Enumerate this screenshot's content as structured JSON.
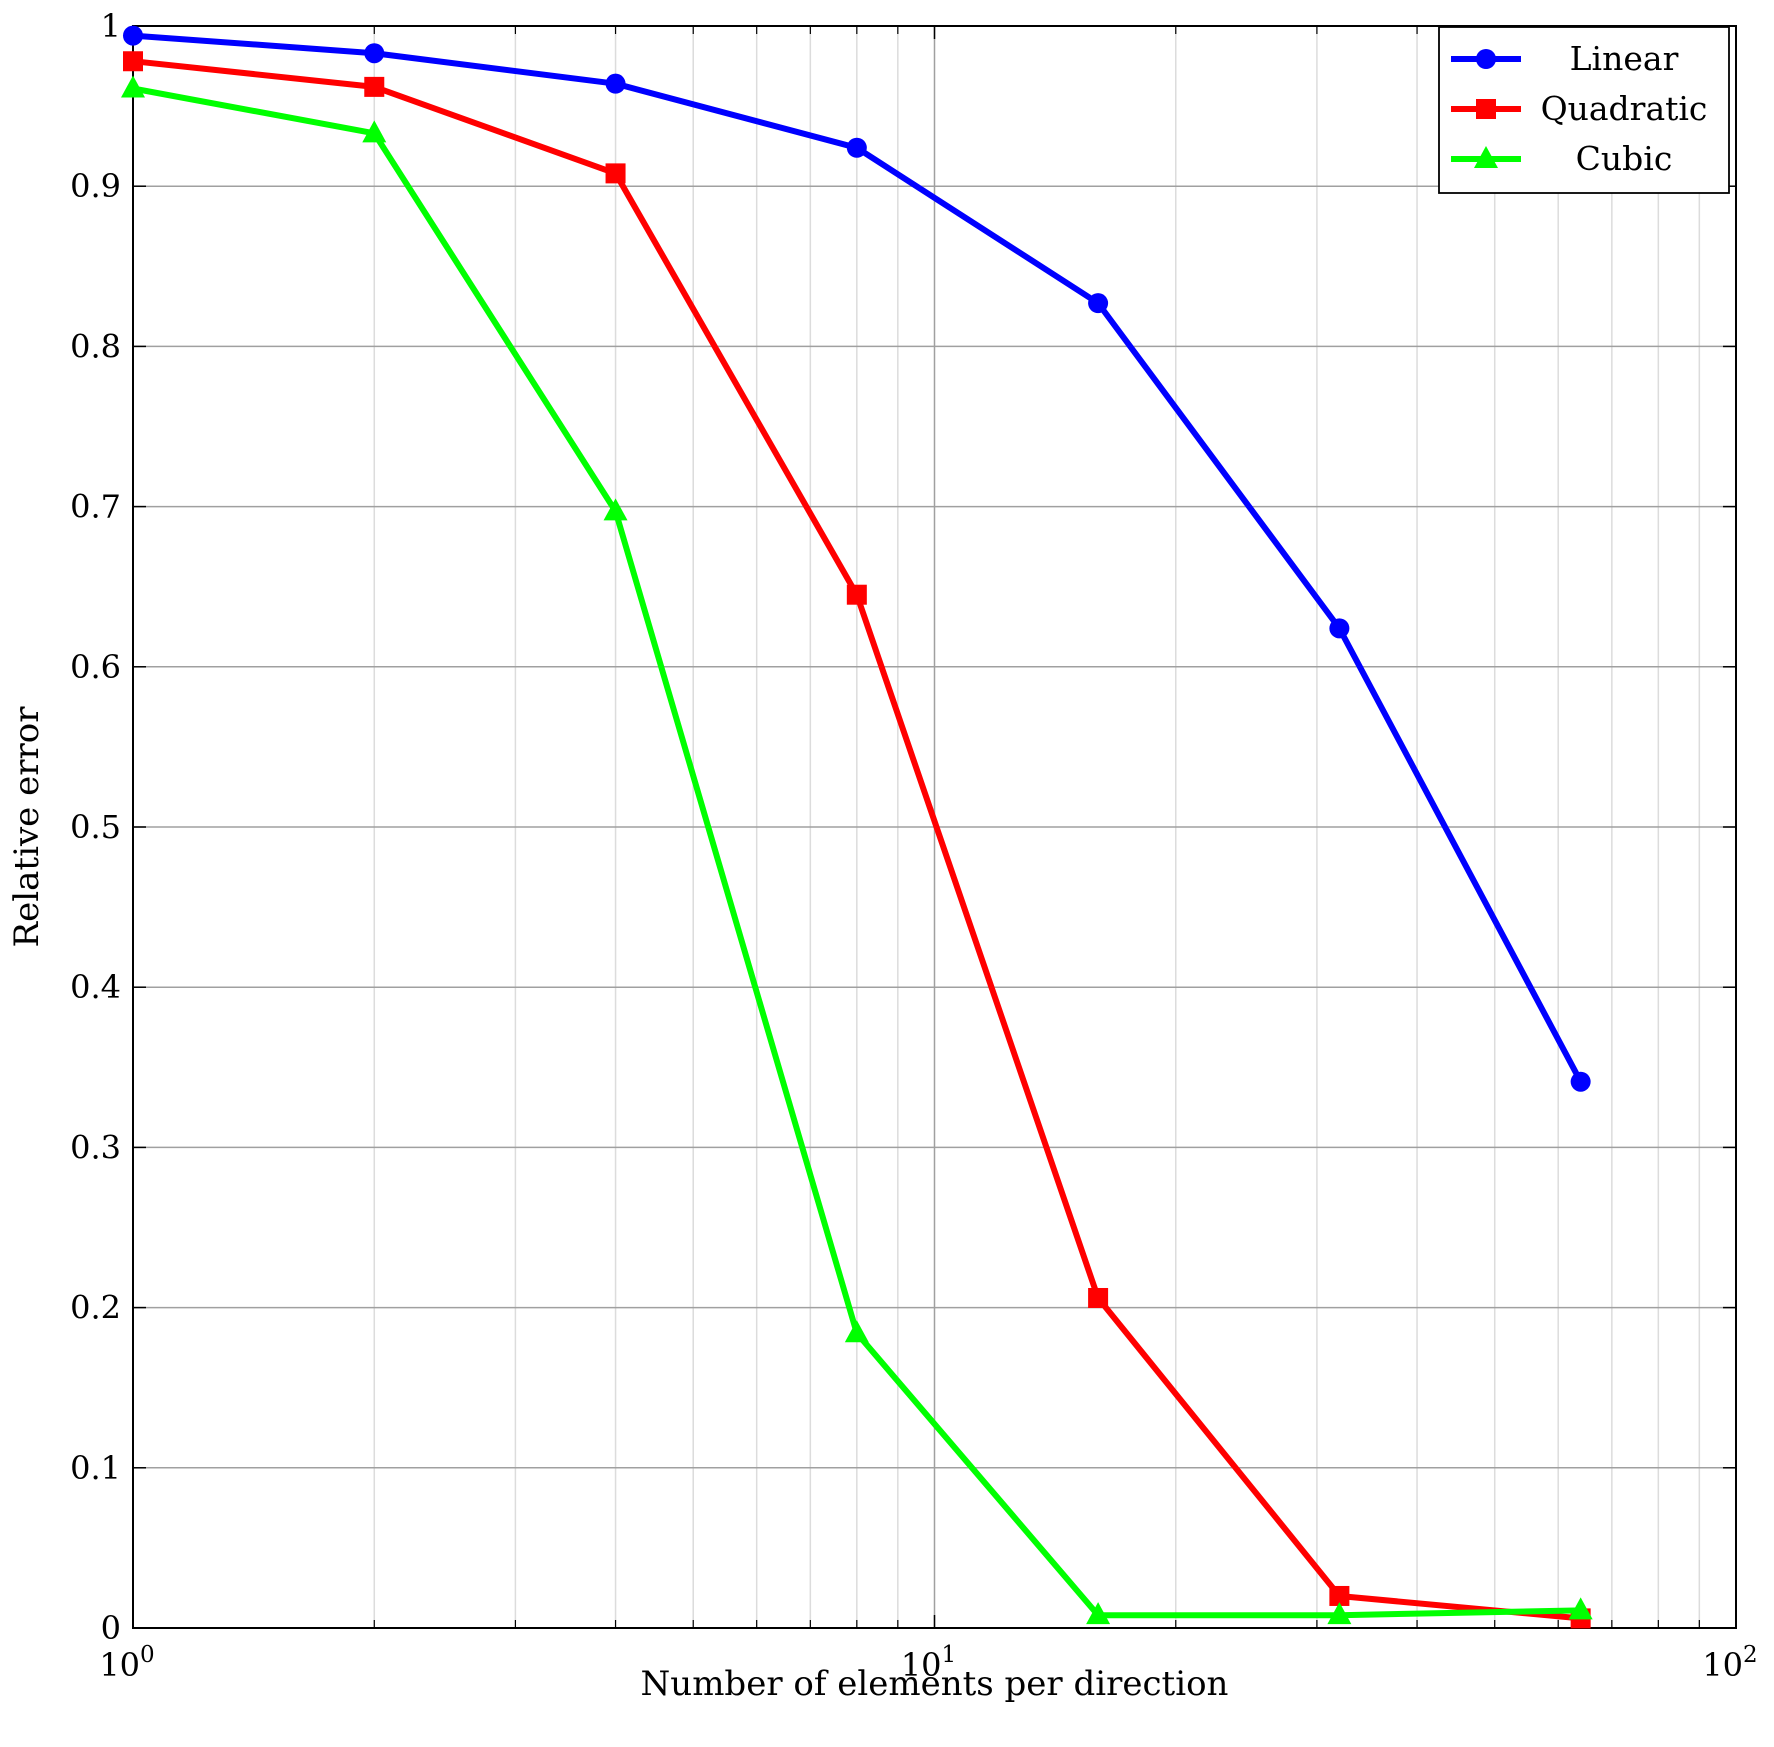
{
  "chart_data": {
    "type": "line",
    "title": "",
    "xlabel": "Number of elements per direction",
    "ylabel": "Relative error",
    "xscale": "log",
    "xlim": [
      1,
      100
    ],
    "ylim": [
      0,
      1
    ],
    "grid": true,
    "legend_position": "top-right",
    "xticks": [
      {
        "value": 1,
        "base": "10",
        "exp": "0"
      },
      {
        "value": 10,
        "base": "10",
        "exp": "1"
      },
      {
        "value": 100,
        "base": "10",
        "exp": "2"
      }
    ],
    "yticks": [
      {
        "value": 0,
        "label": "0"
      },
      {
        "value": 0.1,
        "label": "0.1"
      },
      {
        "value": 0.2,
        "label": "0.2"
      },
      {
        "value": 0.3,
        "label": "0.3"
      },
      {
        "value": 0.4,
        "label": "0.4"
      },
      {
        "value": 0.5,
        "label": "0.5"
      },
      {
        "value": 0.6,
        "label": "0.6"
      },
      {
        "value": 0.7,
        "label": "0.7"
      },
      {
        "value": 0.8,
        "label": "0.8"
      },
      {
        "value": 0.9,
        "label": "0.9"
      },
      {
        "value": 1,
        "label": "1"
      }
    ],
    "series": [
      {
        "name": "Linear",
        "color": "#0000ff",
        "marker": "circle",
        "x": [
          1,
          2,
          4,
          8,
          16,
          32,
          64
        ],
        "y": [
          0.994,
          0.983,
          0.964,
          0.924,
          0.827,
          0.624,
          0.341
        ]
      },
      {
        "name": "Quadratic",
        "color": "#ff0000",
        "marker": "square",
        "x": [
          1,
          2,
          4,
          8,
          16,
          32,
          64
        ],
        "y": [
          0.978,
          0.962,
          0.908,
          0.645,
          0.206,
          0.02,
          0.006
        ]
      },
      {
        "name": "Cubic",
        "color": "#00ff00",
        "marker": "triangle",
        "x": [
          1,
          2,
          4,
          8,
          16,
          32,
          64
        ],
        "y": [
          0.961,
          0.933,
          0.697,
          0.184,
          0.008,
          0.008,
          0.011
        ]
      }
    ]
  }
}
